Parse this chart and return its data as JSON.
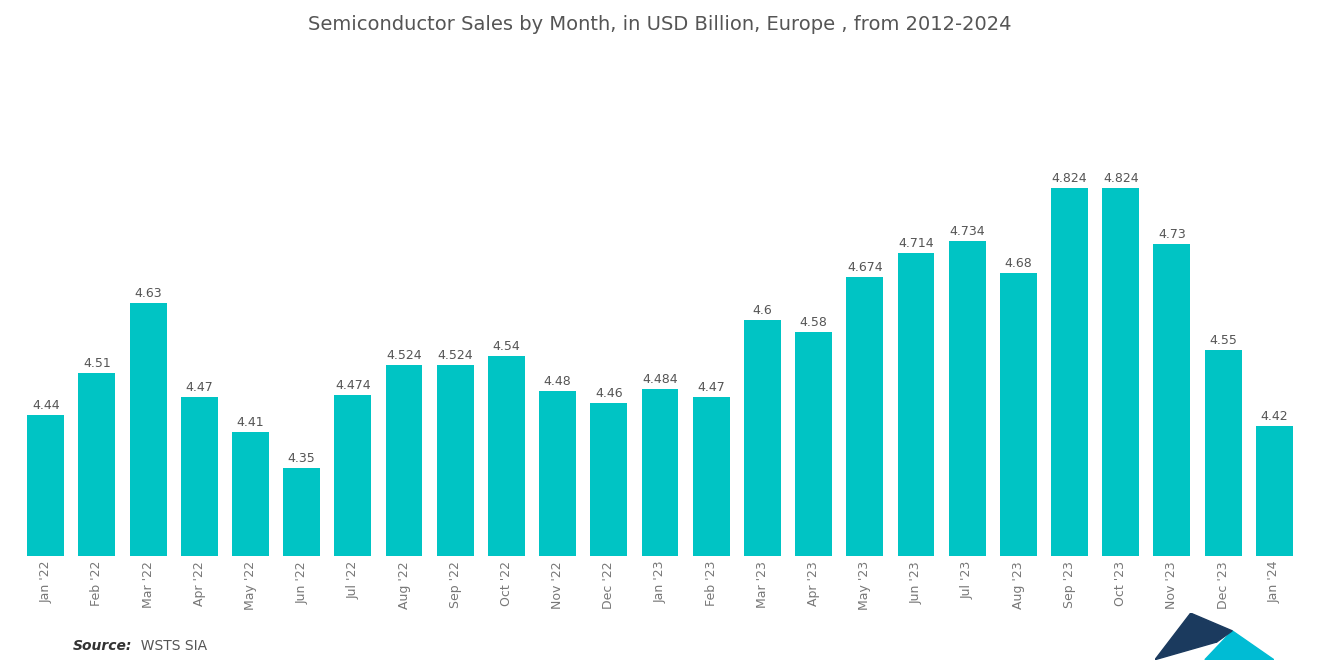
{
  "title": "Semiconductor Sales by Month, in USD Billion, Europe , from 2012-2024",
  "categories": [
    "Jan '22",
    "Feb '22",
    "Mar '22",
    "Apr '22",
    "May '22",
    "Jun '22",
    "Jul '22",
    "Aug '22",
    "Sep '22",
    "Oct '22",
    "Nov '22",
    "Dec '22",
    "Jan '23",
    "Feb '23",
    "Mar '23",
    "Apr '23",
    "May '23",
    "Jun '23",
    "Jul '23",
    "Aug '23",
    "Sep '23",
    "Oct '23",
    "Nov '23",
    "Dec '23",
    "Jan '24"
  ],
  "values": [
    4.44,
    4.51,
    4.63,
    4.47,
    4.41,
    4.35,
    4.474,
    4.524,
    4.524,
    4.54,
    4.48,
    4.46,
    4.484,
    4.47,
    4.6,
    4.58,
    4.674,
    4.714,
    4.734,
    4.68,
    4.824,
    4.824,
    4.73,
    4.55,
    4.42
  ],
  "value_labels": [
    "4.44",
    "4.51",
    "4.63",
    "4.47",
    "4.41",
    "4.35",
    "4.474",
    "4.524",
    "4.524",
    "4.54",
    "4.48",
    "4.46",
    "4.484",
    "4.47",
    "4.6",
    "4.58",
    "4.674",
    "4.714",
    "4.734",
    "4.68",
    "4.824",
    "4.824",
    "4.73",
    "4.55",
    "4.42"
  ],
  "bar_color": "#00C4C4",
  "background_color": "#ffffff",
  "title_color": "#555555",
  "label_color": "#555555",
  "tick_color": "#777777",
  "source_label": "Source:",
  "source_value": "  WSTS SIA",
  "ylim_min": 4.2,
  "ylim_max": 5.05,
  "title_fontsize": 14,
  "label_fontsize": 9,
  "tick_fontsize": 9
}
